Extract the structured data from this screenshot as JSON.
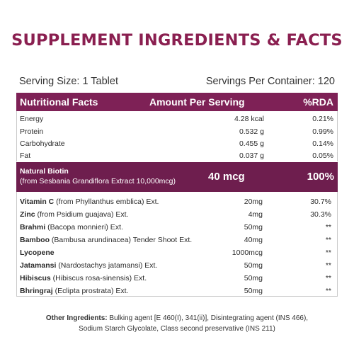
{
  "title": "SUPPLEMENT INGREDIENTS & FACTS",
  "serving_size": "Serving Size: 1 Tablet",
  "servings_per_container": "Servings Per Container: 120",
  "header": {
    "col1": "Nutritional Facts",
    "col2": "Amount Per Serving",
    "col3": "%RDA"
  },
  "nutrition": [
    {
      "name": "Energy",
      "amount": "4.28 kcal",
      "rda": "0.21%"
    },
    {
      "name": "Protein",
      "amount": "0.532 g",
      "rda": "0.99%"
    },
    {
      "name": "Carbohydrate",
      "amount": "0.455 g",
      "rda": "0.14%"
    },
    {
      "name": "Fat",
      "amount": "0.037 g",
      "rda": "0.05%"
    }
  ],
  "biotin": {
    "name": "Natural Biotin",
    "source": "(from Sesbania Grandiflora Extract 10,000mcg)",
    "amount": "40 mcg",
    "rda": "100%"
  },
  "herbs": [
    {
      "name": "Vitamin C",
      "detail": " (from Phyllanthus emblica) Ext.",
      "amount": "20mg",
      "rda": "30.7%"
    },
    {
      "name": "Zinc",
      "detail": " (from Psidium guajava) Ext.",
      "amount": "4mg",
      "rda": "30.3%"
    },
    {
      "name": "Brahmi",
      "detail": " (Bacopa monnieri) Ext.",
      "amount": "50mg",
      "rda": "**"
    },
    {
      "name": "Bamboo",
      "detail": " (Bambusa arundinacea) Tender Shoot Ext.",
      "amount": "40mg",
      "rda": "**"
    },
    {
      "name": "Lycopene",
      "detail": "",
      "amount": "1000mcg",
      "rda": "**"
    },
    {
      "name": "Jatamansi",
      "detail": " (Nardostachys jatamansi) Ext.",
      "amount": "50mg",
      "rda": "**"
    },
    {
      "name": "Hibiscus",
      "detail": " (Hibiscus rosa-sinensis) Ext.",
      "amount": "50mg",
      "rda": "**"
    },
    {
      "name": "Bhringraj",
      "detail": " (Eclipta prostrata) Ext.",
      "amount": "50mg",
      "rda": "**"
    }
  ],
  "other_ingredients": {
    "label": "Other Ingredients:",
    "line1": " Bulking agent [E 460(I), 341(ii)], Disintegrating agent (INS 466),",
    "line2": "Sodium Starch Glycolate, Class second preservative (INS 211)"
  },
  "colors": {
    "brand": "#8a1f50",
    "header_bg": "#7e2156",
    "biotin_bg": "#6e1e4e"
  }
}
